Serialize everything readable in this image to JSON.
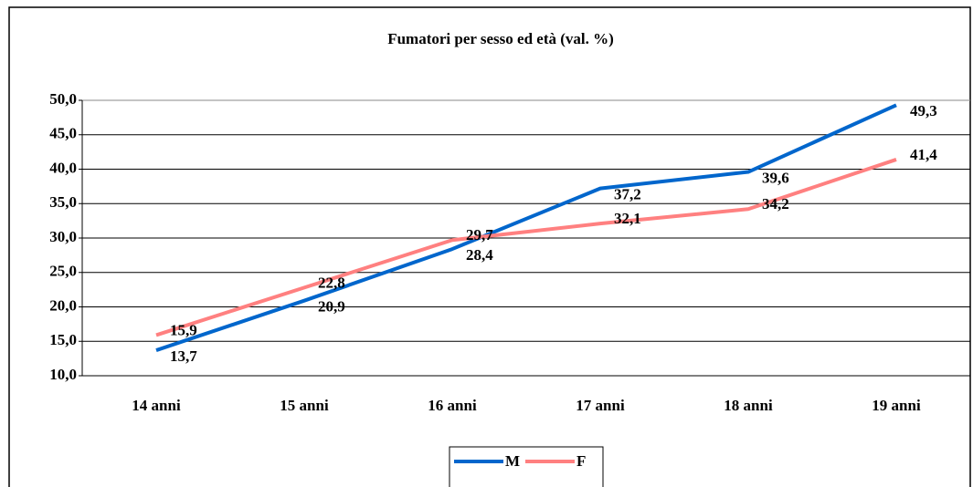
{
  "chart_data": {
    "type": "line",
    "title": "Fumatori per sesso ed età (val. %)",
    "categories": [
      "14 anni",
      "15 anni",
      "16 anni",
      "17 anni",
      "18 anni",
      "19 anni"
    ],
    "series": [
      {
        "name": "M",
        "color": "#0066cc",
        "values": [
          13.7,
          20.9,
          28.4,
          37.2,
          39.6,
          49.3
        ],
        "value_labels": [
          "13,7",
          "20,9",
          "28,4",
          "37,2",
          "39,6",
          "49,3"
        ]
      },
      {
        "name": "F",
        "color": "#ff8080",
        "values": [
          15.9,
          22.8,
          29.7,
          32.1,
          34.2,
          41.4
        ],
        "value_labels": [
          "15,9",
          "22,8",
          "29,7",
          "32,1",
          "34,2",
          "41,4"
        ]
      }
    ],
    "ylim": [
      10,
      50
    ],
    "yticks": [
      {
        "value": 10,
        "label": "10,0"
      },
      {
        "value": 15,
        "label": "15,0"
      },
      {
        "value": 20,
        "label": "20,0"
      },
      {
        "value": 25,
        "label": "25,0"
      },
      {
        "value": 30,
        "label": "30,0"
      },
      {
        "value": 35,
        "label": "35,0"
      },
      {
        "value": 40,
        "label": "40,0"
      },
      {
        "value": 45,
        "label": "45,0"
      },
      {
        "value": 50,
        "label": "50,0"
      }
    ],
    "grid": true,
    "legend": "bottom"
  }
}
